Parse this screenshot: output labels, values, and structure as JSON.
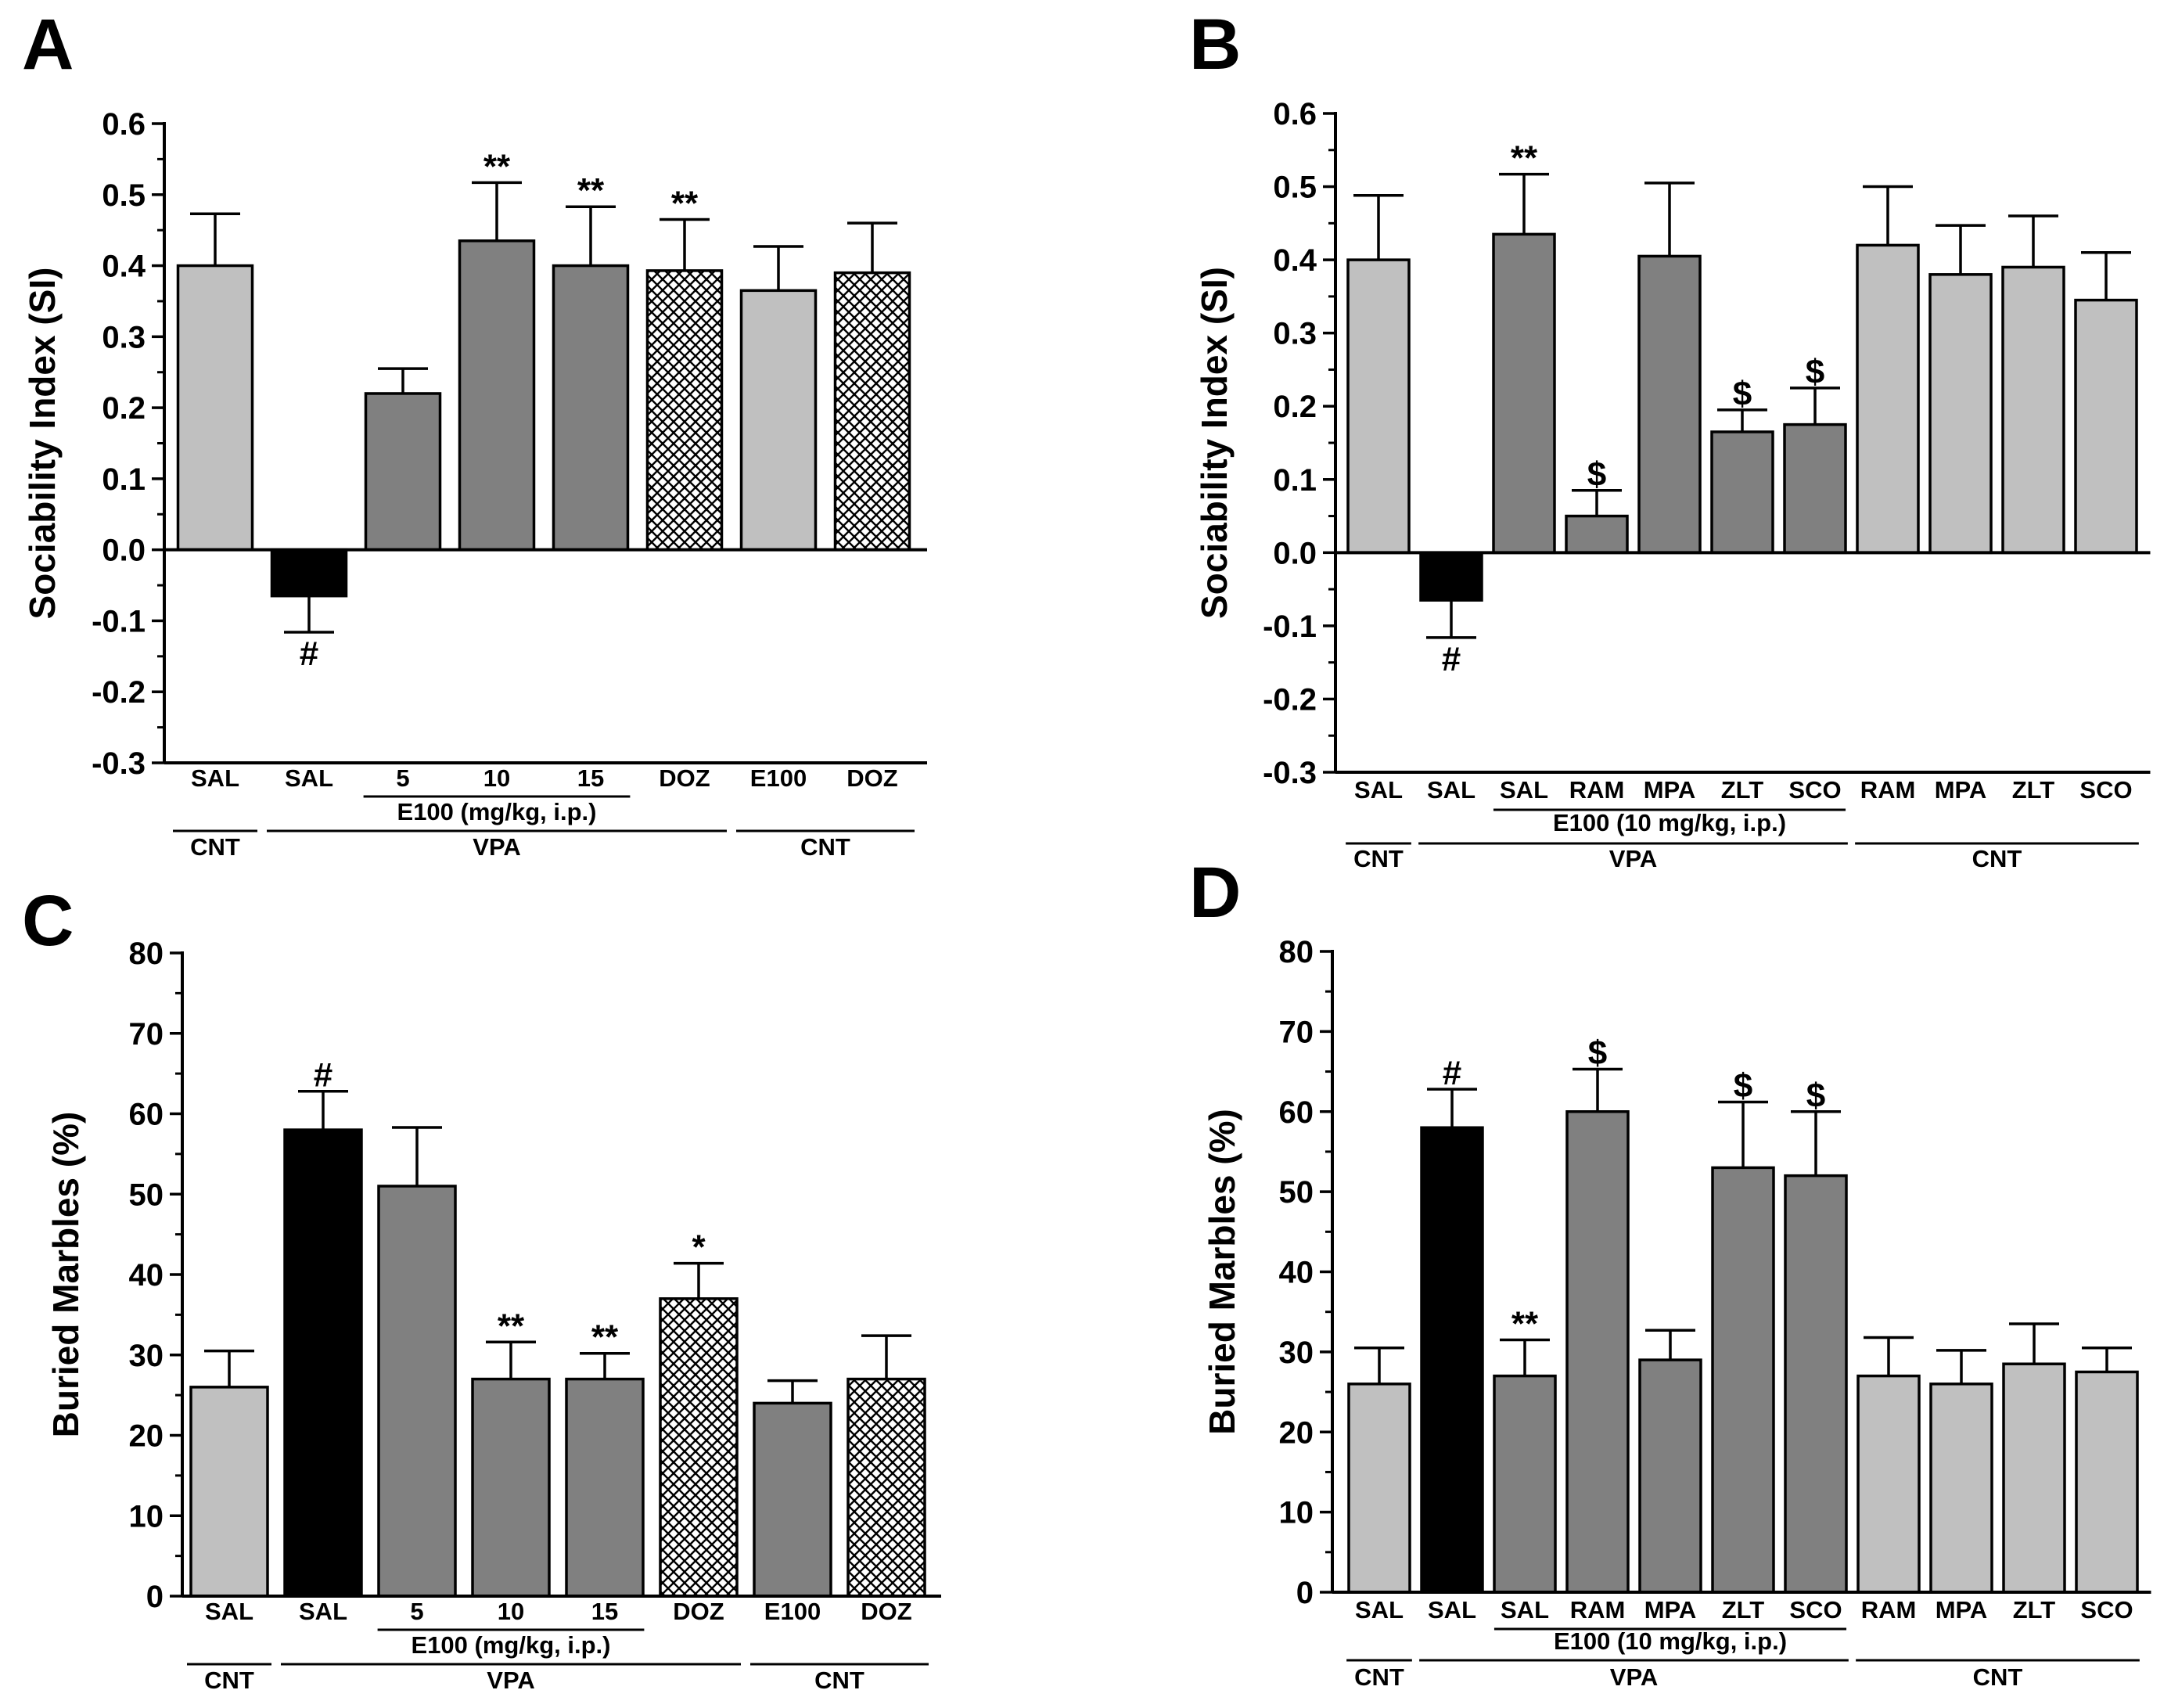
{
  "figure": {
    "colors": {
      "gray": "#c0c0c0",
      "dark_gray": "#808080",
      "black": "#000000",
      "axis": "#000000"
    }
  },
  "chart_data": [
    {
      "panel": "A",
      "type": "bar",
      "ylabel": "Sociability Index (SI)",
      "ylim": [
        -0.3,
        0.6
      ],
      "yticks": [
        0.6,
        0.5,
        0.4,
        0.3,
        0.2,
        0.1,
        0.0,
        -0.1,
        -0.2,
        -0.3
      ],
      "ytick_labels": [
        "0.6",
        "0.5",
        "0.4",
        "0.3",
        "0.2",
        "0.1",
        "0.0",
        "-0.1",
        "-0.2",
        "-0.3"
      ],
      "categories": [
        "SAL",
        "SAL",
        "5",
        "10",
        "15",
        "DOZ",
        "E100",
        "DOZ"
      ],
      "values": [
        0.4,
        -0.065,
        0.22,
        0.435,
        0.4,
        0.393,
        0.365,
        0.39
      ],
      "errors": [
        0.073,
        0.051,
        0.035,
        0.082,
        0.083,
        0.072,
        0.062,
        0.07
      ],
      "fills": [
        "gray",
        "black",
        "dark_gray",
        "dark_gray",
        "dark_gray",
        "hatch",
        "gray",
        "hatch"
      ],
      "annotations": [
        "",
        "#",
        "",
        "**",
        "**",
        "**",
        "",
        ""
      ],
      "subgroup": {
        "label": "E100 (mg/kg, i.p.)",
        "from": 2,
        "to": 4
      },
      "groups": [
        {
          "label": "CNT",
          "from": 0,
          "to": 0
        },
        {
          "label": "VPA",
          "from": 1,
          "to": 5
        },
        {
          "label": "CNT",
          "from": 6,
          "to": 7
        }
      ]
    },
    {
      "panel": "B",
      "type": "bar",
      "ylabel": "Sociability Index (SI)",
      "ylim": [
        -0.3,
        0.6
      ],
      "yticks": [
        0.6,
        0.5,
        0.4,
        0.3,
        0.2,
        0.1,
        0.0,
        -0.1,
        -0.2,
        -0.3
      ],
      "ytick_labels": [
        "0.6",
        "0.5",
        "0.4",
        "0.3",
        "0.2",
        "0.1",
        "0.0",
        "-0.1",
        "-0.2",
        "-0.3"
      ],
      "categories": [
        "SAL",
        "SAL",
        "SAL",
        "RAM",
        "MPA",
        "ZLT",
        "SCO",
        "RAM",
        "MPA",
        "ZLT",
        "SCO"
      ],
      "values": [
        0.4,
        -0.065,
        0.435,
        0.05,
        0.405,
        0.165,
        0.175,
        0.42,
        0.38,
        0.39,
        0.345
      ],
      "errors": [
        0.088,
        0.051,
        0.082,
        0.035,
        0.1,
        0.03,
        0.05,
        0.08,
        0.067,
        0.07,
        0.065
      ],
      "fills": [
        "gray",
        "black",
        "dark_gray",
        "dark_gray",
        "dark_gray",
        "dark_gray",
        "dark_gray",
        "gray",
        "gray",
        "gray",
        "gray"
      ],
      "annotations": [
        "",
        "#",
        "**",
        "$",
        "",
        "$",
        "$",
        "",
        "",
        "",
        ""
      ],
      "subgroup": {
        "label": "E100 (10 mg/kg, i.p.)",
        "from": 2,
        "to": 6
      },
      "groups": [
        {
          "label": "CNT",
          "from": 0,
          "to": 0
        },
        {
          "label": "VPA",
          "from": 1,
          "to": 6
        },
        {
          "label": "CNT",
          "from": 7,
          "to": 10
        }
      ]
    },
    {
      "panel": "C",
      "type": "bar",
      "ylabel": "Buried Marbles (%)",
      "ylim": [
        0,
        80
      ],
      "yticks": [
        80,
        70,
        60,
        50,
        40,
        30,
        20,
        10,
        0
      ],
      "ytick_labels": [
        "80",
        "70",
        "60",
        "50",
        "40",
        "30",
        "20",
        "10",
        "0"
      ],
      "categories": [
        "SAL",
        "SAL",
        "5",
        "10",
        "15",
        "DOZ",
        "E100",
        "DOZ"
      ],
      "values": [
        26,
        58,
        51,
        27,
        27,
        37,
        24,
        27
      ],
      "errors": [
        4.5,
        4.8,
        7.3,
        4.6,
        3.2,
        4.4,
        2.8,
        5.4
      ],
      "fills": [
        "gray",
        "black",
        "dark_gray",
        "dark_gray",
        "dark_gray",
        "hatch",
        "dark_gray",
        "hatch"
      ],
      "annotations": [
        "",
        "#",
        "",
        "**",
        "**",
        "*",
        "",
        ""
      ],
      "subgroup": {
        "label": "E100 (mg/kg, i.p.)",
        "from": 2,
        "to": 4
      },
      "groups": [
        {
          "label": "CNT",
          "from": 0,
          "to": 0
        },
        {
          "label": "VPA",
          "from": 1,
          "to": 5
        },
        {
          "label": "CNT",
          "from": 6,
          "to": 7
        }
      ]
    },
    {
      "panel": "D",
      "type": "bar",
      "ylabel": "Buried Marbles (%)",
      "ylim": [
        0,
        80
      ],
      "yticks": [
        80,
        70,
        60,
        50,
        40,
        30,
        20,
        10,
        0
      ],
      "ytick_labels": [
        "80",
        "70",
        "60",
        "50",
        "40",
        "30",
        "20",
        "10",
        "0"
      ],
      "categories": [
        "SAL",
        "SAL",
        "SAL",
        "RAM",
        "MPA",
        "ZLT",
        "SCO",
        "RAM",
        "MPA",
        "ZLT",
        "SCO"
      ],
      "values": [
        26,
        58,
        27,
        60,
        29,
        53,
        52,
        27,
        26,
        28.5,
        27.5
      ],
      "errors": [
        4.5,
        4.8,
        4.5,
        5.3,
        3.7,
        8.2,
        8.0,
        4.8,
        4.2,
        5.0,
        3.0
      ],
      "fills": [
        "gray",
        "black",
        "dark_gray",
        "dark_gray",
        "dark_gray",
        "dark_gray",
        "dark_gray",
        "gray",
        "gray",
        "gray",
        "gray"
      ],
      "annotations": [
        "",
        "#",
        "**",
        "$",
        "",
        "$",
        "$",
        "",
        "",
        "",
        ""
      ],
      "subgroup": {
        "label": "E100 (10 mg/kg, i.p.)",
        "from": 2,
        "to": 6
      },
      "groups": [
        {
          "label": "CNT",
          "from": 0,
          "to": 0
        },
        {
          "label": "VPA",
          "from": 1,
          "to": 6
        },
        {
          "label": "CNT",
          "from": 7,
          "to": 10
        }
      ]
    }
  ]
}
